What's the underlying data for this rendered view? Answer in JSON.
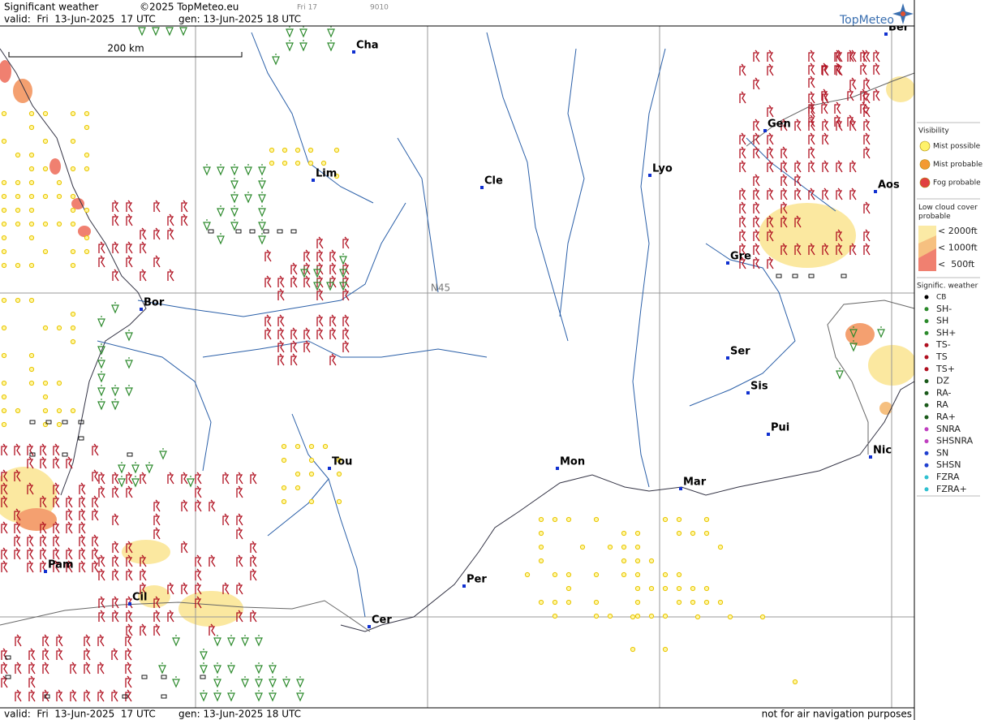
{
  "header": {
    "title": "Significant weather",
    "copyright": "©2025 TopMeteo.eu",
    "frame": "Fri 17",
    "code": "9010",
    "valid": "valid:  Fri  13-Jun-2025  17 UTC",
    "generated": "gen: 13-Jun-2025 18 UTC",
    "logo": "TopMeteo"
  },
  "map": {
    "scale": "200 km",
    "latitude_label": "N45",
    "cities": [
      "Cha",
      "Ber",
      "Gen",
      "Lim",
      "Cle",
      "Lyo",
      "Aos",
      "Gre",
      "Bor",
      "Ser",
      "Sis",
      "Pui",
      "Tou",
      "Mon",
      "Mar",
      "Nic",
      "Pam",
      "Per",
      "Cil",
      "Cer"
    ]
  },
  "legend": {
    "visibility_title": "Visibility",
    "visibility": [
      "Mist possible",
      "Mist probable",
      "Fog probable"
    ],
    "cloud_title": "Low cloud cover probable",
    "cloud": [
      "< 2000ft",
      "< 1000ft",
      "<  500ft"
    ],
    "weather_title": "Signific. weather",
    "weather": [
      "CB",
      "SH-",
      "SH",
      "SH+",
      "TS-",
      "TS",
      "TS+",
      "DZ",
      "RA-",
      "RA",
      "RA+",
      "SNRA",
      "SHSNRA",
      "SN",
      "SHSN",
      "FZRA",
      "FZRA+"
    ]
  },
  "footer": {
    "valid": "valid:  Fri  13-Jun-2025  17 UTC",
    "generated": "gen: 13-Jun-2025 18 UTC",
    "note": "not for air navigation purposes"
  }
}
